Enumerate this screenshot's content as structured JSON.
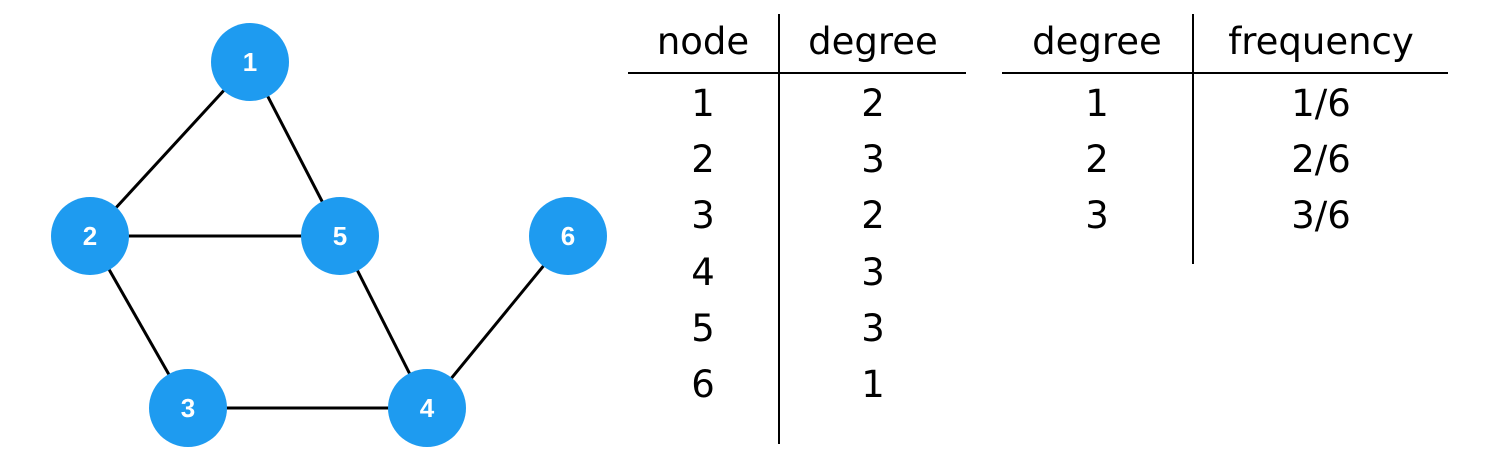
{
  "graph": {
    "node_color": "#1e9bf0",
    "edge_color": "#000000",
    "nodes": [
      {
        "id": "1",
        "label": "1"
      },
      {
        "id": "2",
        "label": "2"
      },
      {
        "id": "3",
        "label": "3"
      },
      {
        "id": "4",
        "label": "4"
      },
      {
        "id": "5",
        "label": "5"
      },
      {
        "id": "6",
        "label": "6"
      }
    ],
    "edges": [
      [
        "1",
        "2"
      ],
      [
        "1",
        "5"
      ],
      [
        "2",
        "5"
      ],
      [
        "2",
        "3"
      ],
      [
        "3",
        "4"
      ],
      [
        "4",
        "5"
      ],
      [
        "4",
        "6"
      ]
    ]
  },
  "degree_table": {
    "headers": [
      "node",
      "degree"
    ],
    "rows": [
      [
        "1",
        "2"
      ],
      [
        "2",
        "3"
      ],
      [
        "3",
        "2"
      ],
      [
        "4",
        "3"
      ],
      [
        "5",
        "3"
      ],
      [
        "6",
        "1"
      ]
    ]
  },
  "frequency_table": {
    "headers": [
      "degree",
      "frequency"
    ],
    "rows": [
      [
        "1",
        "1/6"
      ],
      [
        "2",
        "2/6"
      ],
      [
        "3",
        "3/6"
      ]
    ]
  }
}
